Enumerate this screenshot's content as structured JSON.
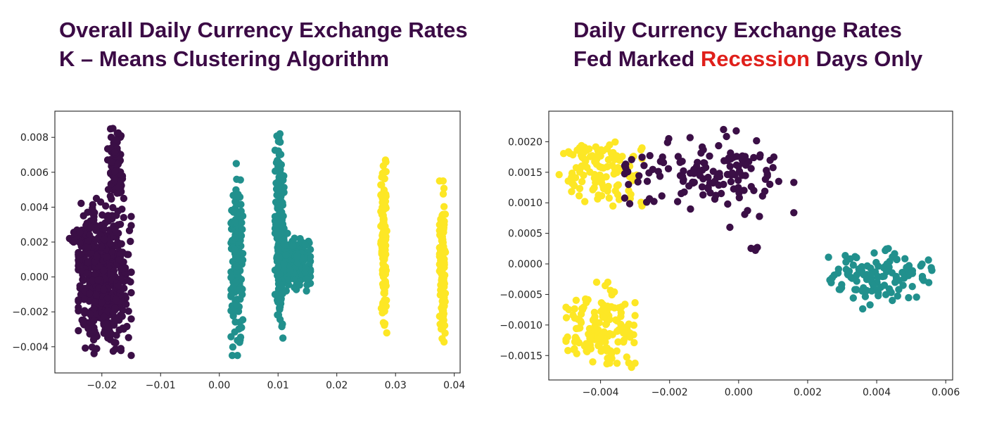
{
  "titles": {
    "left_line1": "Overall Daily Currency Exchange Rates",
    "left_line2": "K – Means Clustering Algorithm",
    "right_line1": "Daily Currency Exchange Rates",
    "right_line2_pre": "Fed Marked ",
    "right_line2_highlight": "Recession",
    "right_line2_post": " Days Only"
  },
  "colors": {
    "cluster_purple": "#3b0f46",
    "cluster_teal": "#21908d",
    "cluster_yellow": "#fde725",
    "title_color": "#3b0a45",
    "highlight_red": "#e0201b"
  },
  "chart_data": [
    {
      "type": "scatter",
      "xlim": [
        -0.028,
        0.041
      ],
      "ylim": [
        -0.0055,
        0.0095
      ],
      "xticks": [
        -0.02,
        -0.01,
        0.0,
        0.01,
        0.02,
        0.03,
        0.04
      ],
      "xtick_labels": [
        "−0.02",
        "−0.01",
        "0.00",
        "0.01",
        "0.02",
        "0.03",
        "0.04"
      ],
      "yticks": [
        -0.004,
        -0.002,
        0.0,
        0.002,
        0.004,
        0.006,
        0.008
      ],
      "ytick_labels": [
        "−0.004",
        "−0.002",
        "0.000",
        "0.002",
        "0.004",
        "0.006",
        "0.008"
      ],
      "grid": false,
      "clusters": [
        {
          "color": "purple",
          "blobs": [
            {
              "x": [
                -0.024,
                -0.015
              ],
              "y": [
                -0.0045,
                0.0045
              ],
              "n": 520
            },
            {
              "x": [
                -0.019,
                -0.0165
              ],
              "y": [
                0.004,
                0.0088
              ],
              "n": 90
            },
            {
              "x": [
                -0.026,
                -0.021
              ],
              "y": [
                0.0015,
                0.003
              ],
              "n": 40
            }
          ]
        },
        {
          "color": "teal",
          "blobs": [
            {
              "x": [
                0.002,
                0.004
              ],
              "y": [
                -0.0045,
                0.0065
              ],
              "n": 160
            },
            {
              "x": [
                0.0095,
                0.011
              ],
              "y": [
                -0.004,
                0.0089
              ],
              "n": 180
            },
            {
              "x": [
                0.01,
                0.0155
              ],
              "y": [
                -0.0008,
                0.0025
              ],
              "n": 160
            }
          ]
        },
        {
          "color": "yellow",
          "blobs": [
            {
              "x": [
                0.0275,
                0.0285
              ],
              "y": [
                -0.0035,
                0.0072
              ],
              "n": 140
            },
            {
              "x": [
                0.0375,
                0.0385
              ],
              "y": [
                -0.0045,
                0.0055
              ],
              "n": 140
            }
          ]
        }
      ]
    },
    {
      "type": "scatter",
      "xlim": [
        -0.0055,
        0.0062
      ],
      "ylim": [
        -0.0019,
        0.0025
      ],
      "xticks": [
        -0.004,
        -0.002,
        0.0,
        0.002,
        0.004,
        0.006
      ],
      "xtick_labels": [
        "−0.004",
        "−0.002",
        "0.000",
        "0.002",
        "0.004",
        "0.006"
      ],
      "yticks": [
        -0.0015,
        -0.001,
        -0.0005,
        0.0,
        0.0005,
        0.001,
        0.0015,
        0.002
      ],
      "ytick_labels": [
        "−0.0015",
        "−0.0010",
        "−0.0005",
        "0.0000",
        "0.0005",
        "0.0010",
        "0.0015",
        "0.0020"
      ],
      "grid": false,
      "clusters": [
        {
          "color": "yellow",
          "blobs": [
            {
              "x": [
                -0.0052,
                -0.0028
              ],
              "y": [
                0.0009,
                0.0021
              ],
              "n": 110
            },
            {
              "x": [
                -0.005,
                -0.003
              ],
              "y": [
                -0.0018,
                -0.0003
              ],
              "n": 150
            }
          ]
        },
        {
          "color": "purple",
          "blobs": [
            {
              "x": [
                -0.0033,
                0.0016
              ],
              "y": [
                0.0006,
                0.0023
              ],
              "n": 140
            },
            {
              "x": [
                0.0003,
                0.0006
              ],
              "y": [
                0.00015,
                0.0003
              ],
              "n": 4
            }
          ]
        },
        {
          "color": "teal",
          "blobs": [
            {
              "x": [
                0.0025,
                0.0057
              ],
              "y": [
                -0.00075,
                0.00025
              ],
              "n": 120
            }
          ]
        }
      ]
    }
  ]
}
